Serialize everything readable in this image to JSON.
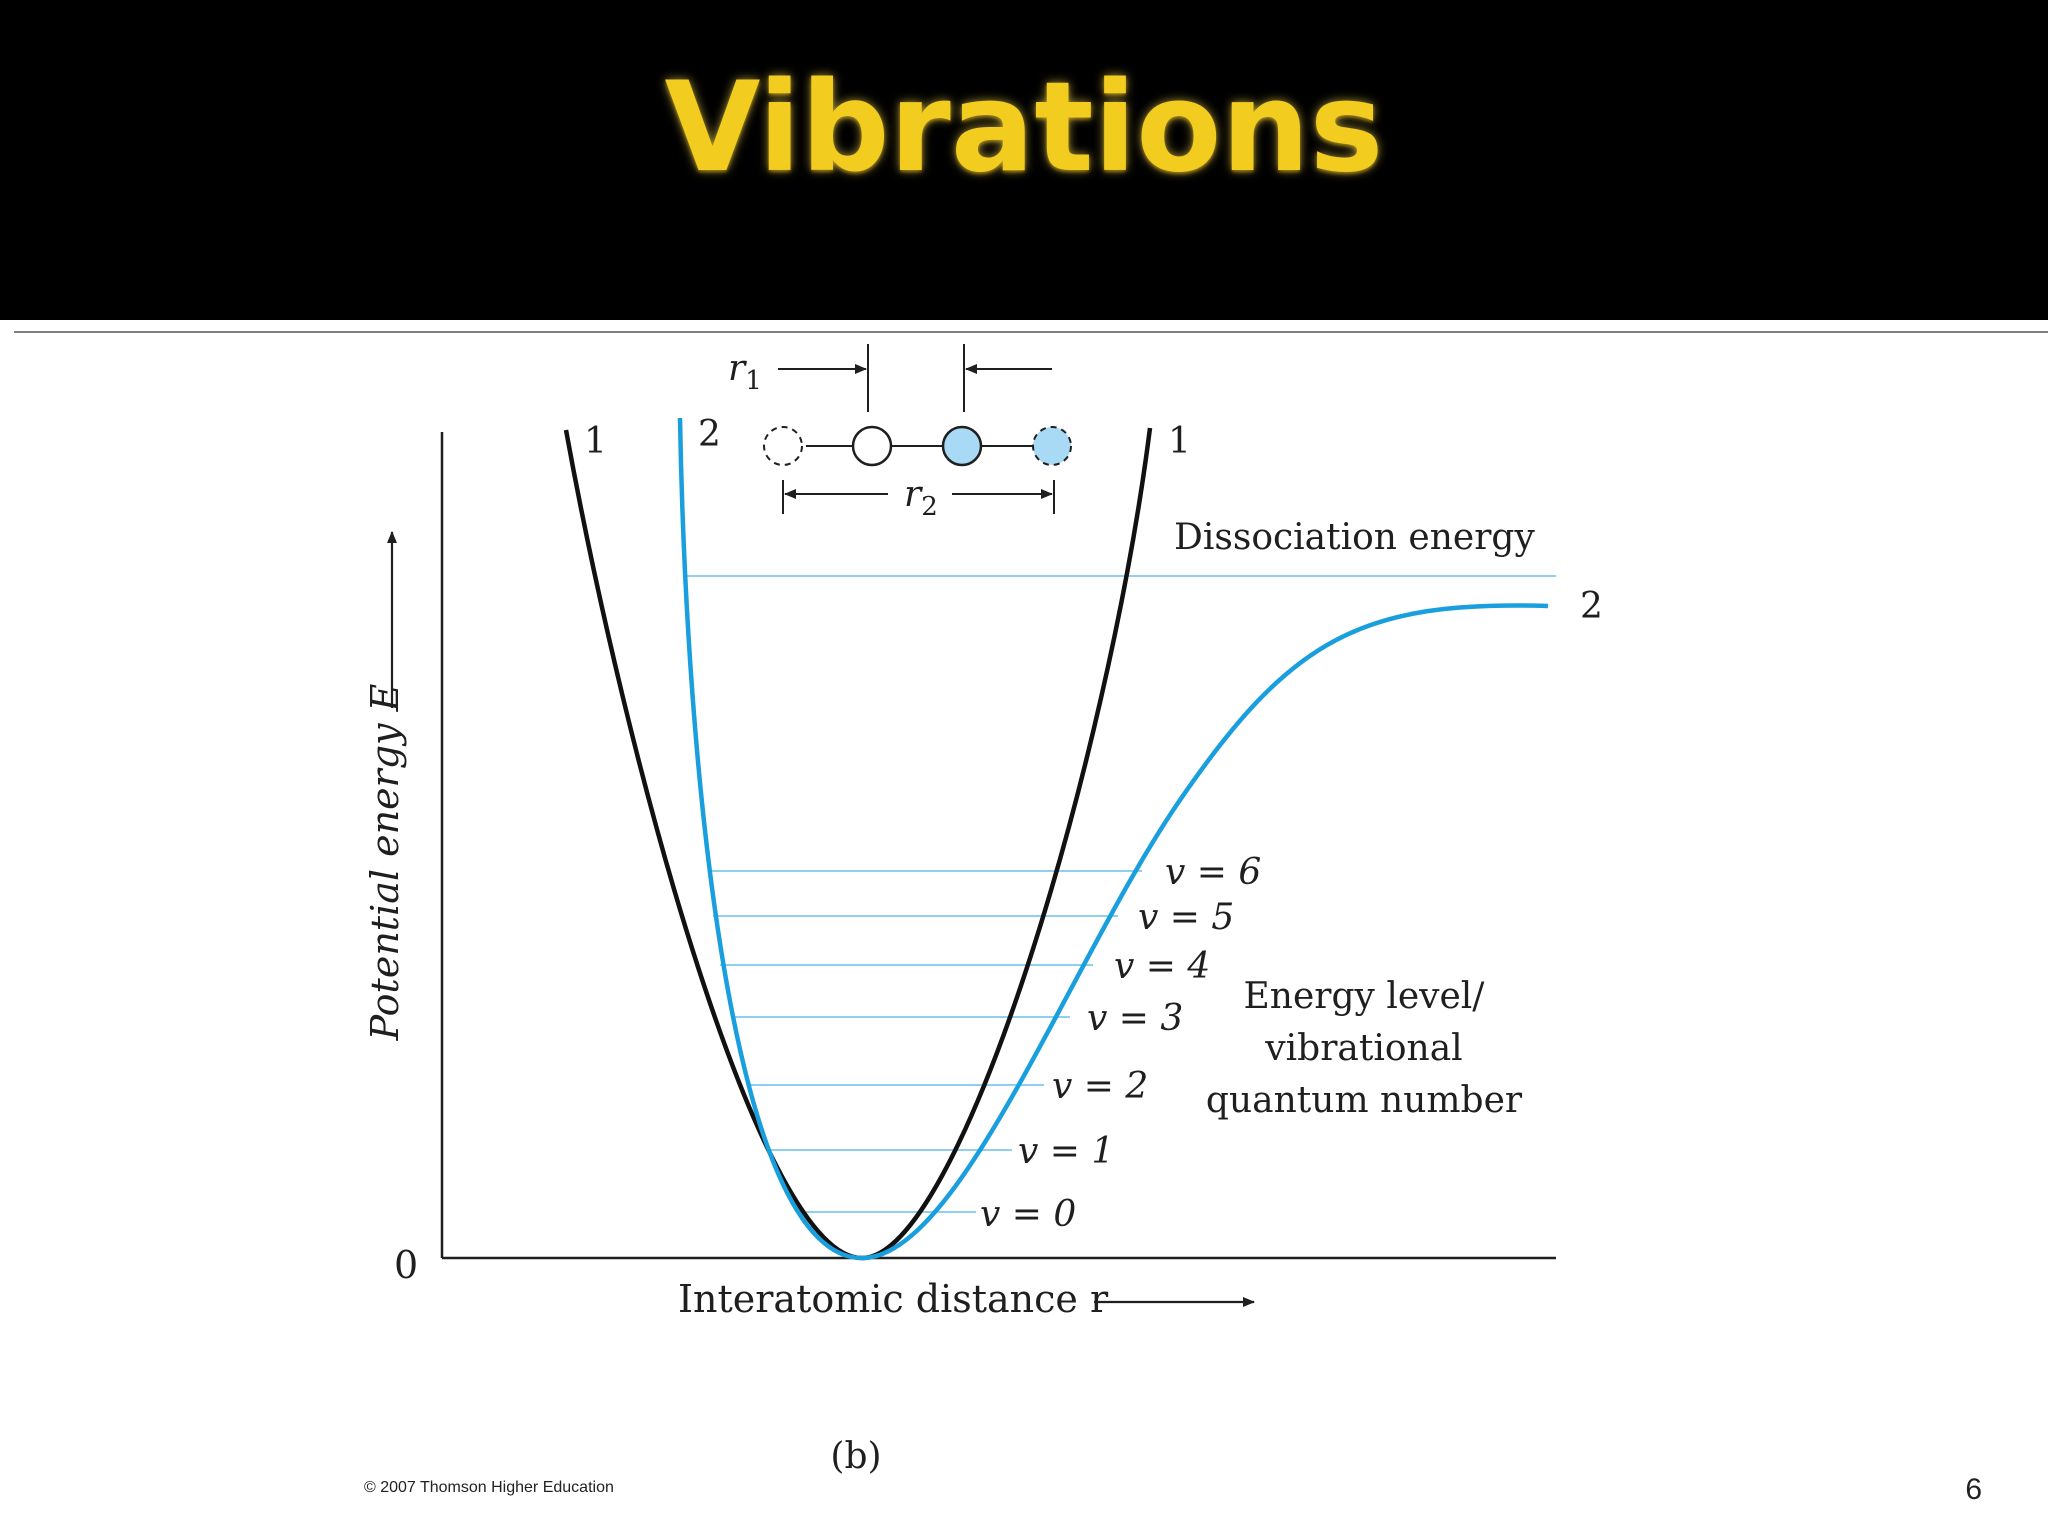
{
  "slide": {
    "title": "Vibrations",
    "page_number": "6",
    "copyright": "© 2007 Thomson Higher Education"
  },
  "diagram": {
    "y_axis_label": "Potential energy E",
    "x_axis_label": "Interatomic distance r",
    "origin_label": "0",
    "curve_labels": {
      "curve1_left": "1",
      "curve1_right": "1",
      "curve2_top": "2",
      "curve2_right": "2"
    },
    "dissociation_label": "Dissociation energy",
    "levels": [
      "v = 0",
      "v = 1",
      "v = 2",
      "v = 3",
      "v = 4",
      "v = 5",
      "v = 6"
    ],
    "levels_caption": [
      "Energy level/",
      "vibrational",
      "quantum number"
    ],
    "r1_label": "r1",
    "r2_label": "r2",
    "panel_label": "(b)",
    "colors": {
      "curve1": "#111111",
      "curve2": "#1a9fde",
      "levels": "#8fd0ef",
      "atom_fill": "#a9daf5"
    }
  }
}
